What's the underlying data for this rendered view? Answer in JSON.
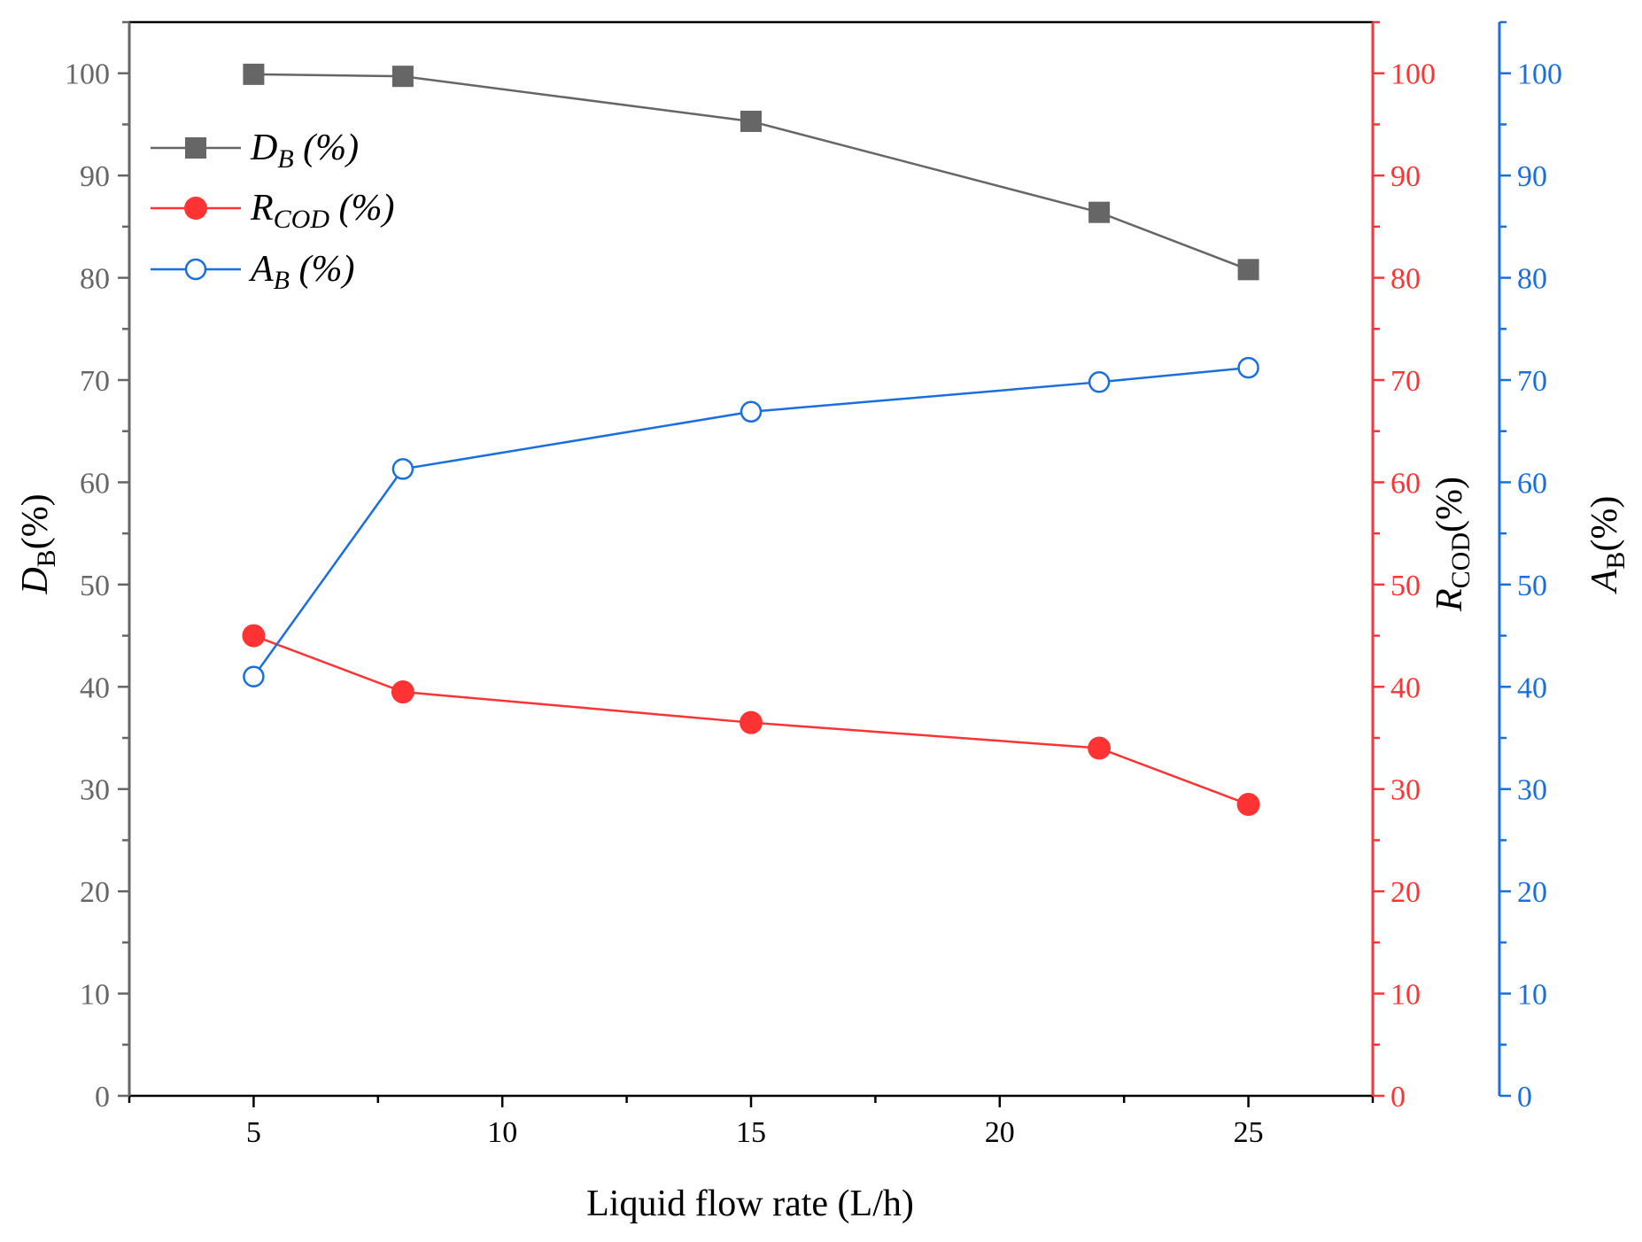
{
  "chart_data": {
    "type": "line",
    "x": [
      5,
      8,
      15,
      22,
      25
    ],
    "xlim": [
      2.5,
      27.5
    ],
    "x_ticks": [
      5,
      10,
      15,
      20,
      25
    ],
    "xlabel": "Liquid flow rate (L/h)",
    "series": [
      {
        "key": "db",
        "name": "D_B (%)",
        "legend_main": "D",
        "legend_sub": "B",
        "legend_suffix": " (%)",
        "axis": "left",
        "color": "#666666",
        "marker": "square-filled",
        "values": [
          99.9,
          99.7,
          95.3,
          86.4,
          80.8
        ]
      },
      {
        "key": "rcod",
        "name": "R_COD (%)",
        "legend_main": "R",
        "legend_sub": "COD",
        "legend_suffix": " (%)",
        "axis": "right",
        "color": "#ff3333",
        "marker": "circle-filled",
        "values": [
          45.0,
          39.5,
          36.5,
          34.0,
          28.5
        ]
      },
      {
        "key": "ab",
        "name": "A_B (%)",
        "legend_main": "A",
        "legend_sub": "B",
        "legend_suffix": " (%)",
        "axis": "right-offset",
        "color": "#1a6fdf",
        "marker": "circle-open",
        "values": [
          41.0,
          61.3,
          66.9,
          69.8,
          71.2
        ]
      }
    ],
    "axes": {
      "left": {
        "main": "D",
        "sub": "B",
        "suffix": "(%)",
        "color": "#666666",
        "ylim": [
          0,
          105
        ],
        "ticks": [
          0,
          10,
          20,
          30,
          40,
          50,
          60,
          70,
          80,
          90,
          100
        ]
      },
      "right": {
        "main": "R",
        "sub": "COD",
        "suffix": "(%)",
        "color": "#ff3333",
        "ylim": [
          0,
          105
        ],
        "ticks": [
          0,
          10,
          20,
          30,
          40,
          50,
          60,
          70,
          80,
          90,
          100
        ]
      },
      "right_offset": {
        "main": "A",
        "sub": "B",
        "suffix": "(%)",
        "color": "#1a6fdf",
        "ylim": [
          0,
          105
        ],
        "ticks": [
          0,
          10,
          20,
          30,
          40,
          50,
          60,
          70,
          80,
          90,
          100
        ]
      }
    },
    "legend_position": "top-left",
    "grid": false
  }
}
